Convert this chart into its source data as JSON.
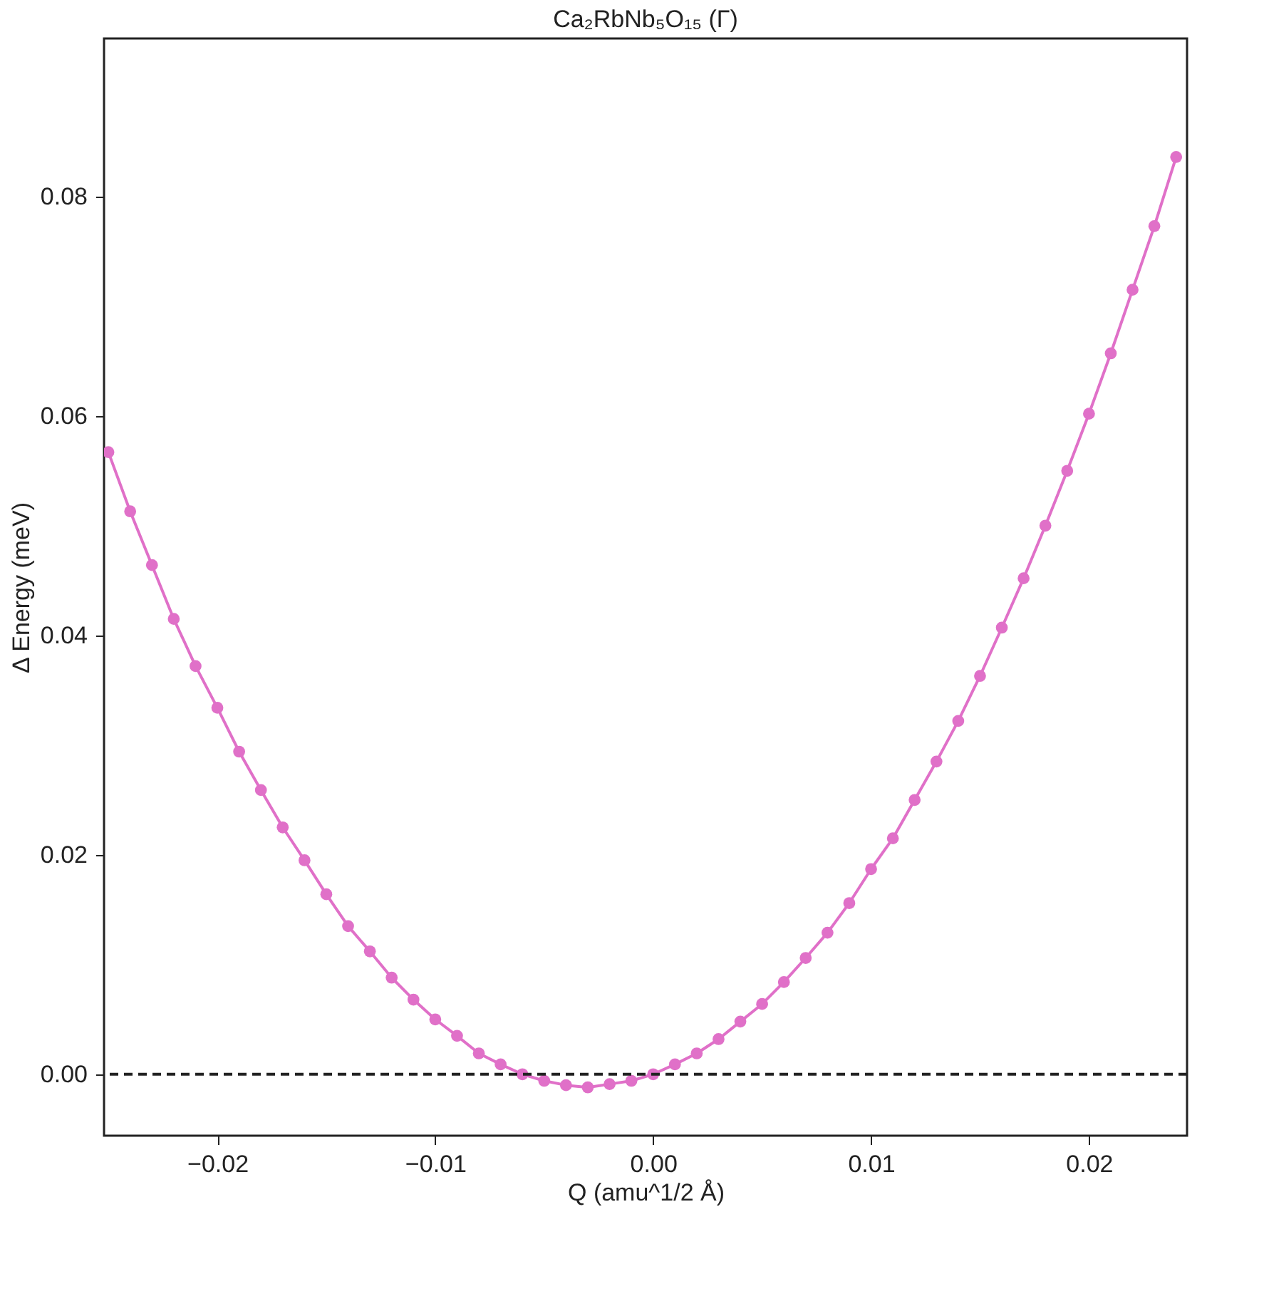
{
  "chart_data": {
    "type": "line",
    "title": "Ca₂RbNb₅O₁₅ (Γ)",
    "xlabel": "Q (amu^1/2 Å)",
    "ylabel": "Δ Energy (meV)",
    "x": [
      -0.025,
      -0.024,
      -0.023,
      -0.022,
      -0.021,
      -0.02,
      -0.019,
      -0.018,
      -0.017,
      -0.016,
      -0.015,
      -0.014,
      -0.013,
      -0.012,
      -0.011,
      -0.01,
      -0.009,
      -0.008,
      -0.007,
      -0.006,
      -0.005,
      -0.004,
      -0.003,
      -0.002,
      -0.001,
      0.0,
      0.001,
      0.002,
      0.003,
      0.004,
      0.005,
      0.006,
      0.007,
      0.008,
      0.009,
      0.01,
      0.011,
      0.012,
      0.013,
      0.014,
      0.015,
      0.016,
      0.017,
      0.018,
      0.019,
      0.02,
      0.021,
      0.022,
      0.023,
      0.024
    ],
    "series": [
      {
        "color": "#e070c8",
        "values": [
          0.0567,
          0.0513,
          0.0464,
          0.0415,
          0.0372,
          0.0334,
          0.0294,
          0.0259,
          0.0225,
          0.0195,
          0.0164,
          0.0135,
          0.0112,
          0.0088,
          0.0068,
          0.005,
          0.0035,
          0.0019,
          0.0009,
          0.0,
          -0.0006,
          -0.001,
          -0.0012,
          -0.0009,
          -0.0006,
          0.0,
          0.0009,
          0.0019,
          0.0032,
          0.0048,
          0.0064,
          0.0084,
          0.0106,
          0.0129,
          0.0156,
          0.0187,
          0.0215,
          0.025,
          0.0285,
          0.0322,
          0.0363,
          0.0407,
          0.0452,
          0.05,
          0.055,
          0.0602,
          0.0657,
          0.0715,
          0.0773,
          0.0836
        ]
      }
    ],
    "xlim": [
      -0.0252,
      0.0245
    ],
    "ylim": [
      -0.0056,
      0.0944
    ],
    "xticks": [
      {
        "value": -0.02,
        "label": "−0.02"
      },
      {
        "value": -0.01,
        "label": "−0.01"
      },
      {
        "value": 0,
        "label": "0.00"
      },
      {
        "value": 0.01,
        "label": "0.01"
      },
      {
        "value": 0.02,
        "label": "0.02"
      }
    ],
    "yticks": [
      {
        "value": 0,
        "label": "0.00"
      },
      {
        "value": 0.02,
        "label": "0.02"
      },
      {
        "value": 0.04,
        "label": "0.04"
      },
      {
        "value": 0.06,
        "label": "0.06"
      },
      {
        "value": 0.08,
        "label": "0.08"
      }
    ],
    "ref_lines": [
      {
        "axis": "y",
        "value": 0,
        "color": "#222222",
        "line_style": "dashed"
      }
    ],
    "grid": false,
    "marker": "circle",
    "line_style": "solid"
  }
}
